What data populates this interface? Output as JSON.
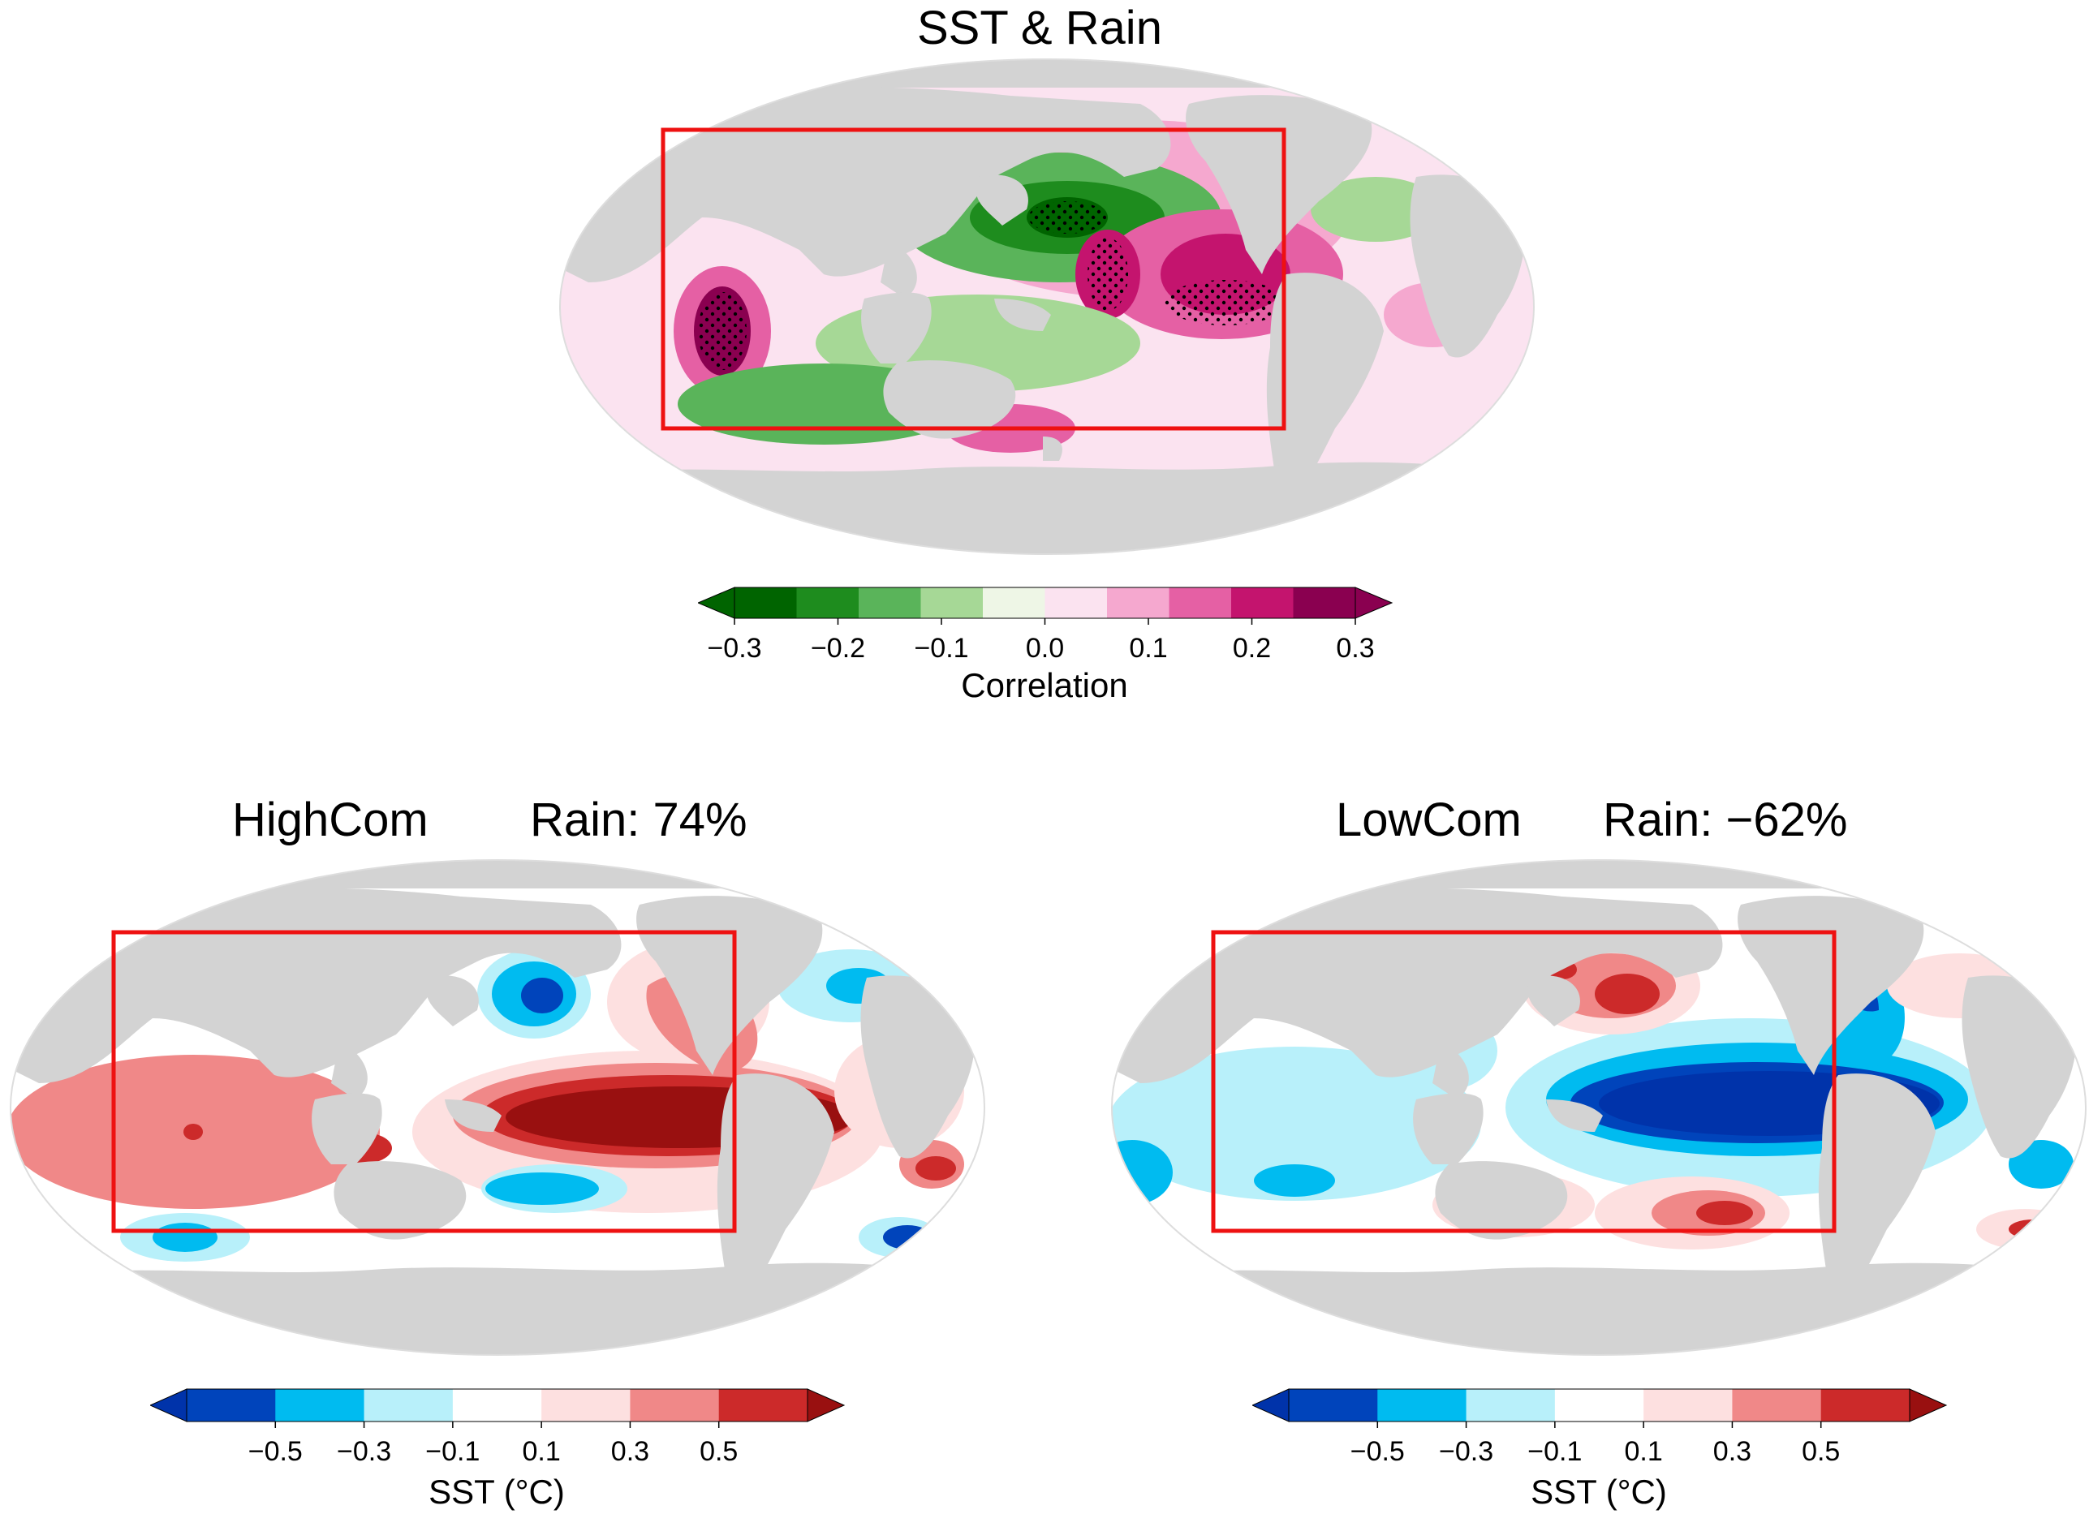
{
  "top_panel": {
    "title": "SST & Rain",
    "colorbar": {
      "label": "Correlation",
      "ticks": [
        "−0.3",
        "−0.2",
        "−0.1",
        "0.0",
        "0.1",
        "0.2",
        "0.3"
      ],
      "colors": [
        "#006400",
        "#1e8c1e",
        "#5ab45a",
        "#a6d896",
        "#eef6e6",
        "#fbe3f0",
        "#f5a8cf",
        "#e560a4",
        "#c4146e",
        "#8a0050"
      ]
    }
  },
  "left_panel": {
    "title": "HighCom",
    "rain_label": "Rain: 74%",
    "colorbar": {
      "label": "SST (°C)",
      "ticks": [
        "−0.5",
        "−0.3",
        "−0.1",
        "0.1",
        "0.3",
        "0.5"
      ],
      "colors": [
        "#0033aa",
        "#0044bb",
        "#00bbf0",
        "#b8f0fa",
        "#ffffff",
        "#fde0e0",
        "#f08888",
        "#cc2a2a",
        "#991010"
      ]
    }
  },
  "right_panel": {
    "title": "LowCom",
    "rain_label": "Rain: −62%",
    "colorbar": {
      "label": "SST (°C)",
      "ticks": [
        "−0.5",
        "−0.3",
        "−0.1",
        "0.1",
        "0.3",
        "0.5"
      ],
      "colors": [
        "#0033aa",
        "#0044bb",
        "#00bbf0",
        "#b8f0fa",
        "#ffffff",
        "#fde0e0",
        "#f08888",
        "#cc2a2a",
        "#991010"
      ]
    }
  },
  "styles": {
    "land": "#d3d3d3",
    "outline": "#dddddd",
    "box": "#ee1111"
  }
}
